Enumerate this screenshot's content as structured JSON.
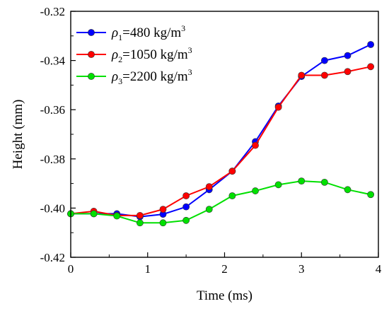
{
  "chart_data": {
    "type": "line",
    "xlabel": "Time (ms)",
    "ylabel": "Height (mm)",
    "xlim": [
      0,
      4
    ],
    "ylim": [
      -0.42,
      -0.32
    ],
    "xticks": [
      0,
      1,
      2,
      3,
      4
    ],
    "yticks": [
      -0.42,
      -0.4,
      -0.38,
      -0.36,
      -0.34,
      -0.32
    ],
    "xtick_labels": [
      "0",
      "1",
      "2",
      "3",
      "4"
    ],
    "ytick_labels": [
      "-0.42",
      "-0.40",
      "-0.38",
      "-0.36",
      "-0.34",
      "-0.32"
    ],
    "legend_position": "top-left",
    "x": [
      0,
      0.3,
      0.6,
      0.9,
      1.2,
      1.5,
      1.8,
      2.1,
      2.4,
      2.7,
      3.0,
      3.3,
      3.6,
      3.9
    ],
    "series": [
      {
        "name": "ρ1=480 kg/m3",
        "legend": {
          "symbol": "ρ",
          "sub": "1",
          "text": "=480 kg/m",
          "sup": "3"
        },
        "color": "#0000ff",
        "values": [
          -0.4023,
          -0.4023,
          -0.4023,
          -0.4035,
          -0.4025,
          -0.3995,
          -0.3925,
          -0.385,
          -0.373,
          -0.3585,
          -0.3465,
          -0.34,
          -0.338,
          -0.3335
        ]
      },
      {
        "name": "ρ2=1050 kg/m3",
        "legend": {
          "symbol": "ρ",
          "sub": "2",
          "text": "=1050 kg/m",
          "sup": "3"
        },
        "color": "#ff0000",
        "values": [
          -0.4023,
          -0.4013,
          -0.403,
          -0.403,
          -0.4005,
          -0.395,
          -0.3913,
          -0.385,
          -0.3745,
          -0.359,
          -0.346,
          -0.346,
          -0.3445,
          -0.3425
        ]
      },
      {
        "name": "ρ3=2200 kg/m3",
        "legend": {
          "symbol": "ρ",
          "sub": "3",
          "text": "=2200 kg/m",
          "sup": "3"
        },
        "color": "#00e000",
        "values": [
          -0.4023,
          -0.4023,
          -0.4032,
          -0.406,
          -0.406,
          -0.405,
          -0.4005,
          -0.395,
          -0.393,
          -0.3905,
          -0.389,
          -0.3895,
          -0.3925,
          -0.3945
        ]
      }
    ]
  }
}
